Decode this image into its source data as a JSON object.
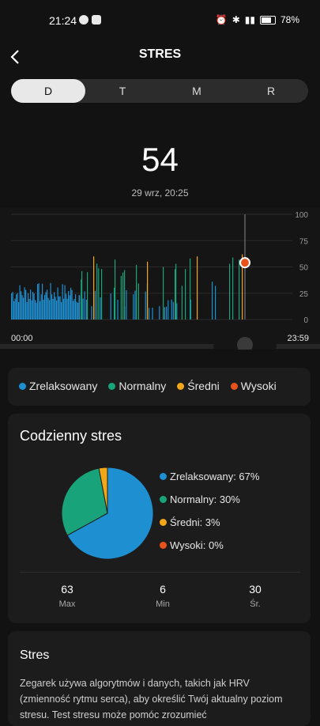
{
  "status_bar": {
    "time": "21:24",
    "battery": "78%"
  },
  "header": {
    "title": "STRES"
  },
  "tabs": [
    {
      "label": "D",
      "active": true
    },
    {
      "label": "T",
      "active": false
    },
    {
      "label": "M",
      "active": false
    },
    {
      "label": "R",
      "active": false
    }
  ],
  "current": {
    "value": "54",
    "timestamp": "29 wrz, 20:25"
  },
  "timeline": {
    "start": "00:00",
    "end": "23:59"
  },
  "legend": [
    {
      "label": "Zrelaksowany",
      "color": "#1e90d2"
    },
    {
      "label": "Normalny",
      "color": "#18a37a"
    },
    {
      "label": "Średni",
      "color": "#f2a618"
    },
    {
      "label": "Wysoki",
      "color": "#e8531d"
    }
  ],
  "chart_data": [
    {
      "type": "bar",
      "y_ticks": [
        "100",
        "75",
        "50",
        "25",
        "0"
      ],
      "ylim": [
        0,
        100
      ],
      "x_labels": [
        "00:00",
        "23:59"
      ],
      "series_colors": {
        "relaxed": "#1e90d2",
        "normal": "#18a37a",
        "medium": "#f2a618",
        "high": "#e8531d"
      },
      "selected_point": {
        "time": "20:25",
        "value": 54
      }
    },
    {
      "type": "pie",
      "labels": [
        "Zrelaksowany",
        "Normalny",
        "Średni",
        "Wysoki"
      ],
      "values": [
        67,
        30,
        3,
        0
      ],
      "colors": [
        "#1e90d2",
        "#18a37a",
        "#f2a618",
        "#e8531d"
      ]
    }
  ],
  "daily": {
    "title": "Codzienny stres",
    "legend": [
      {
        "text": "Zrelaksowany: 67%",
        "color": "#1e90d2"
      },
      {
        "text": "Normalny: 30%",
        "color": "#18a37a"
      },
      {
        "text": "Średni: 3%",
        "color": "#f2a618"
      },
      {
        "text": "Wysoki: 0%",
        "color": "#e8531d"
      }
    ],
    "stats": [
      {
        "value": "63",
        "label": "Max"
      },
      {
        "value": "6",
        "label": "Min"
      },
      {
        "value": "30",
        "label": "Śr."
      }
    ]
  },
  "info": {
    "title": "Stres",
    "text": "Zegarek używa algorytmów i danych, takich jak HRV (zmienność rytmu serca), aby określić Twój aktualny poziom stresu. Test stresu może pomóc zrozumieć"
  }
}
